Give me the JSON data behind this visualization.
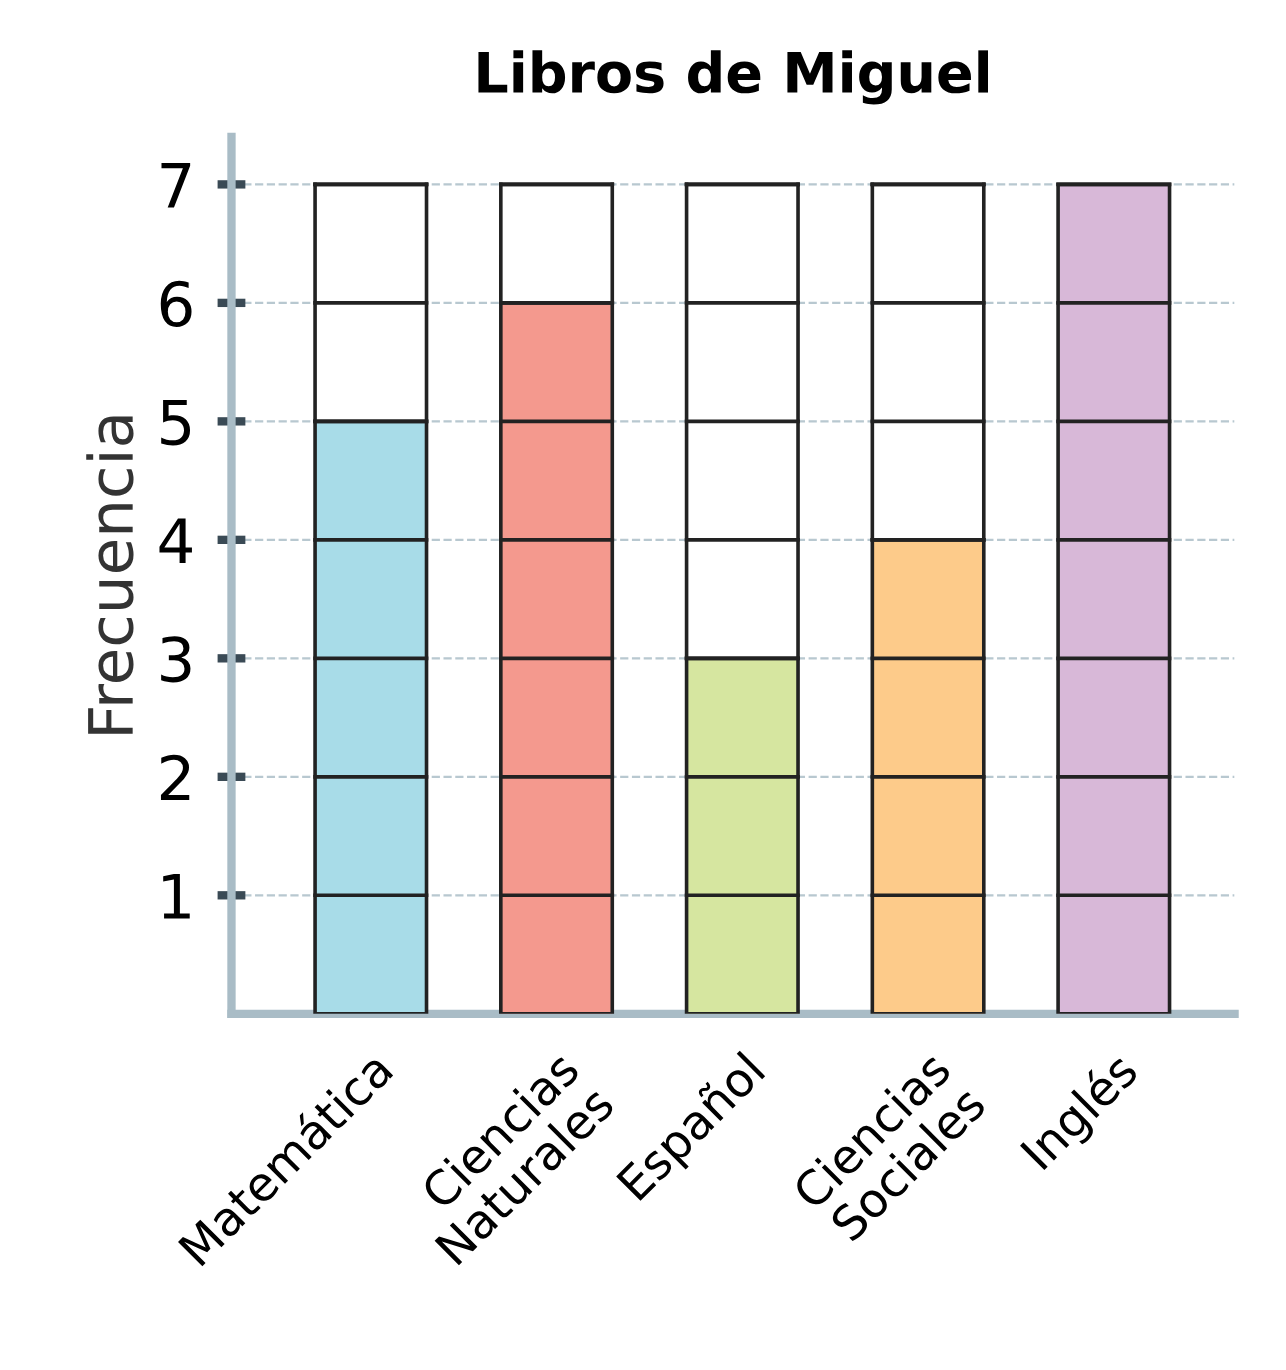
{
  "chart_data": {
    "type": "bar",
    "title": "Libros de Miguel",
    "ylabel": "Frecuencia",
    "categories": [
      "Matemática",
      "Ciencias\nNaturales",
      "Español",
      "Ciencias\nSociales",
      "Inglés"
    ],
    "values": [
      5,
      6,
      3,
      4,
      7
    ],
    "colors": [
      "#a8dce8",
      "#f4998e",
      "#d6e6a0",
      "#fdcb8a",
      "#d8b8d8"
    ],
    "ylim": [
      0,
      7.4
    ],
    "yticks": [
      1,
      2,
      3,
      4,
      5,
      6,
      7
    ],
    "grid": "y"
  }
}
